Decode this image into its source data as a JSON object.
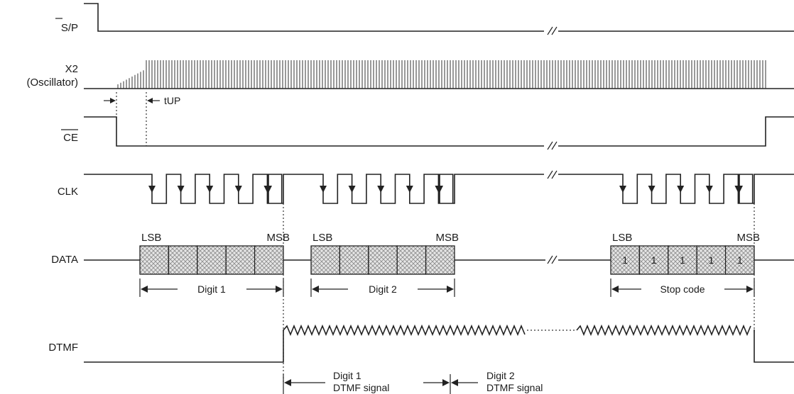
{
  "signals": {
    "sp": "S/P",
    "x2_line1": "X2",
    "x2_line2": "(Oscillator)",
    "ce": "CE",
    "clk": "CLK",
    "data": "DATA",
    "dtmf": "DTMF"
  },
  "timing": {
    "tup": "tUP"
  },
  "frames": [
    {
      "lsb": "LSB",
      "msb": "MSB",
      "span": "Digit 1",
      "bits": [
        "",
        "",
        "",
        "",
        ""
      ]
    },
    {
      "lsb": "LSB",
      "msb": "MSB",
      "span": "Digit 2",
      "bits": [
        "",
        "",
        "",
        "",
        ""
      ]
    },
    {
      "lsb": "LSB",
      "msb": "MSB",
      "span": "Stop code",
      "bits": [
        "1",
        "1",
        "1",
        "1",
        "1"
      ]
    }
  ],
  "dtmf_signals": [
    {
      "line1": "Digit 1",
      "line2": "DTMF signal"
    },
    {
      "line1": "Digit 2",
      "line2": "DTMF signal"
    }
  ]
}
